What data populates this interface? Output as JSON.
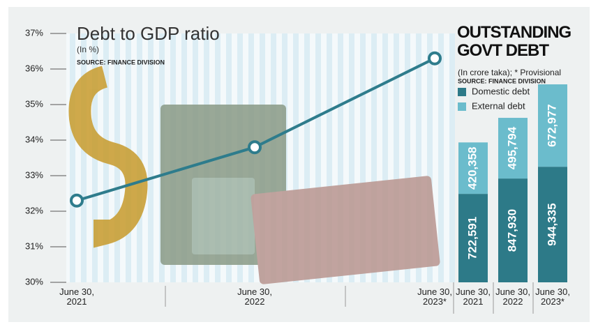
{
  "chart_data": [
    {
      "type": "line",
      "title": "Debt to GDP ratio",
      "subtitle": "(In %)",
      "source": "SOURCE: FINANCE DIVISION",
      "categories": [
        "June 30, 2021",
        "June 30, 2022",
        "June 30, 2023*"
      ],
      "values": [
        32.3,
        33.8,
        36.3
      ],
      "color": "#2e7c8c",
      "ylim": [
        30,
        37
      ],
      "yticks": [
        {
          "value": 30,
          "label": "30%"
        },
        {
          "value": 31,
          "label": "31%"
        },
        {
          "value": 32,
          "label": "32%"
        },
        {
          "value": 33,
          "label": "33%"
        },
        {
          "value": 34,
          "label": "34%"
        },
        {
          "value": 35,
          "label": "35%"
        },
        {
          "value": 36,
          "label": "36%"
        },
        {
          "value": 37,
          "label": "37%"
        }
      ]
    },
    {
      "type": "stacked-bar",
      "title": "OUTSTANDING GOVT DEBT",
      "subtitle": "(In crore taka); * Provisional",
      "source": "SOURCE: FINANCE DIVISION",
      "categories": [
        "June 30, 2021",
        "June 30, 2022",
        "June 30, 2023*"
      ],
      "series": [
        {
          "name": "Domestic debt",
          "color": "#2d7a88",
          "values": [
            722591,
            847930,
            944335
          ],
          "value_labels": [
            "722,591",
            "847,930",
            "944,335"
          ]
        },
        {
          "name": "External debt",
          "color": "#6bbccc",
          "values": [
            420358,
            495794,
            672977
          ],
          "value_labels": [
            "420,358",
            "495,794",
            "672,977"
          ]
        }
      ]
    }
  ]
}
